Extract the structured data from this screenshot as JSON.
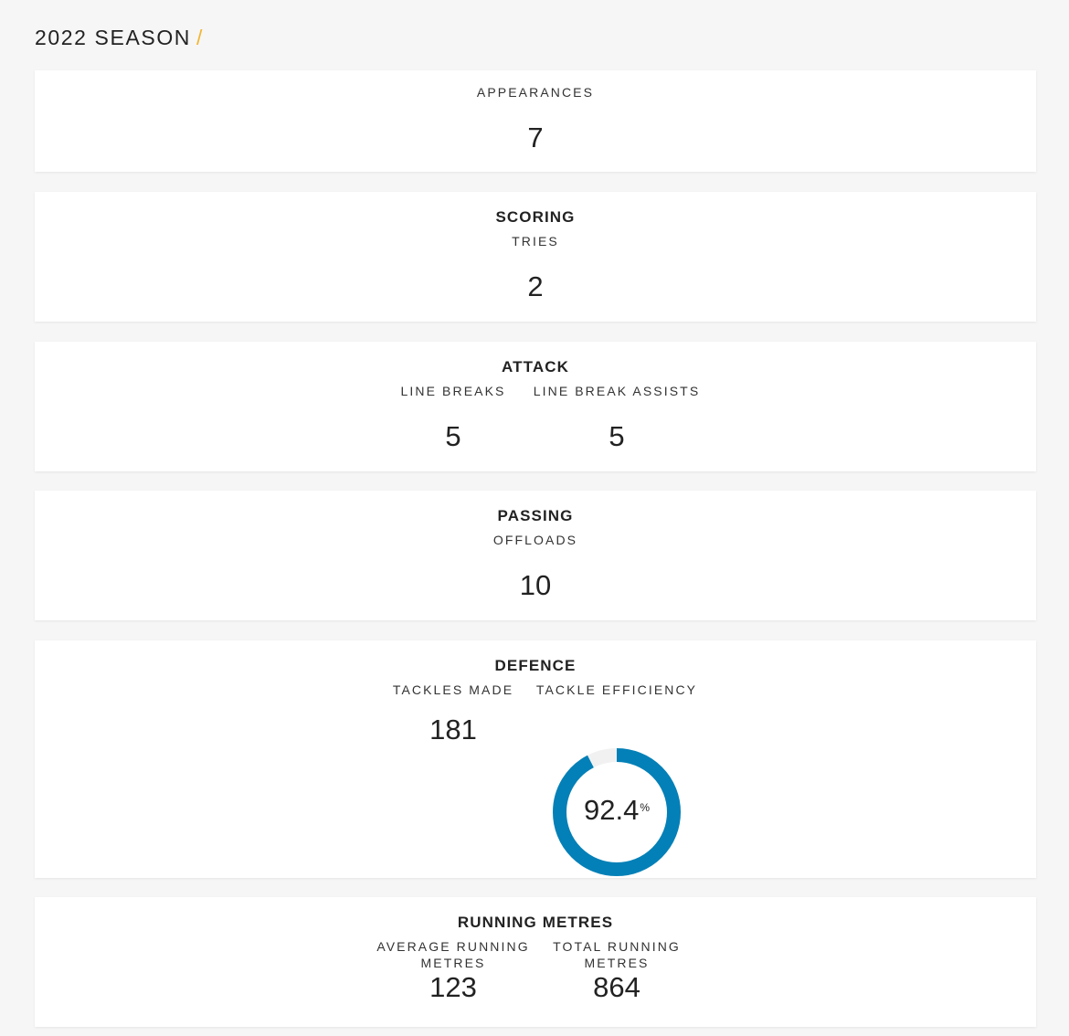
{
  "header": {
    "title": "2022 SEASON",
    "slash": "/"
  },
  "colors": {
    "accent": "#f2b632",
    "ring_fill": "#0380b7",
    "ring_track": "#f1f1f1"
  },
  "appearances": {
    "label": "APPEARANCES",
    "value": "7"
  },
  "scoring": {
    "title": "SCORING",
    "tries_label": "TRIES",
    "tries_value": "2"
  },
  "attack": {
    "title": "ATTACK",
    "line_breaks_label": "LINE BREAKS",
    "line_breaks_value": "5",
    "line_break_assists_label": "LINE BREAK ASSISTS",
    "line_break_assists_value": "5"
  },
  "passing": {
    "title": "PASSING",
    "offloads_label": "OFFLOADS",
    "offloads_value": "10"
  },
  "defence": {
    "title": "DEFENCE",
    "tackles_made_label": "TACKLES MADE",
    "tackles_made_value": "181",
    "tackle_efficiency_label": "TACKLE EFFICIENCY",
    "tackle_efficiency_value": "92.4",
    "tackle_efficiency_unit": "%",
    "tackle_efficiency_fraction": 0.924
  },
  "running_metres": {
    "title": "RUNNING METRES",
    "average_label_line1": "AVERAGE RUNNING",
    "average_label_line2": "METRES",
    "average_value": "123",
    "total_label_line1": "TOTAL RUNNING",
    "total_label_line2": "METRES",
    "total_value": "864"
  }
}
